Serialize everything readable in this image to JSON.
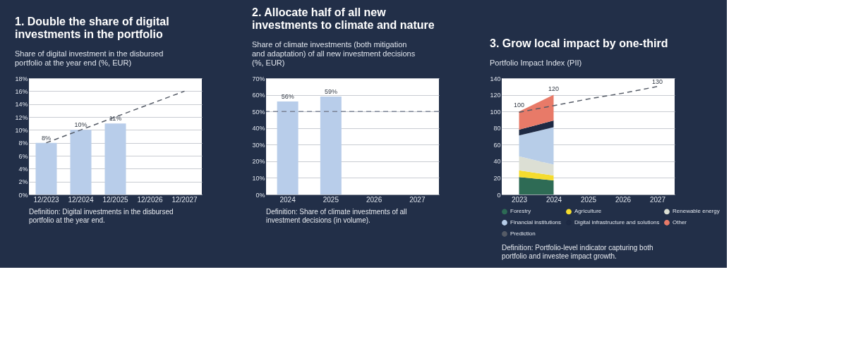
{
  "chart_data": [
    {
      "type": "bar",
      "title": "1. Double the share of digital investments in the portfolio",
      "subtitle": "Share of digital investment in the disbursed portfolio at the year end (%, EUR)",
      "categories": [
        "12/2023",
        "12/2024",
        "12/2025",
        "12/2026",
        "12/2027"
      ],
      "series": [
        {
          "type": "bar",
          "color": "#b8cdea",
          "values": [
            8,
            10,
            11,
            null,
            null
          ],
          "value_labels": [
            "8%",
            "10%",
            "11%",
            null,
            null
          ]
        },
        {
          "type": "line",
          "color": "#555b66",
          "line_style": "dashed",
          "values": [
            8,
            10,
            12,
            14,
            16
          ]
        }
      ],
      "ylim": [
        0,
        18
      ],
      "yticks": [
        {
          "value": 0,
          "label": "0%"
        },
        {
          "value": 2,
          "label": "2%"
        },
        {
          "value": 4,
          "label": "4%"
        },
        {
          "value": 6,
          "label": "6%"
        },
        {
          "value": 8,
          "label": "8%"
        },
        {
          "value": 10,
          "label": "10%"
        },
        {
          "value": 12,
          "label": "12%"
        },
        {
          "value": 14,
          "label": "14%"
        },
        {
          "value": 16,
          "label": "16%"
        },
        {
          "value": 18,
          "label": "18%"
        }
      ],
      "grid": "y",
      "annotations": [
        "Definition: Digital investments in the disbursed portfolio at the year end."
      ]
    },
    {
      "type": "bar",
      "title": "2. Allocate half of all new investments to climate and nature",
      "subtitle": "Share of climate investments (both mitigation and adaptation) of all new investment decisions (%, EUR)",
      "categories": [
        "2024",
        "2025",
        "2026",
        "2027"
      ],
      "series": [
        {
          "type": "bar",
          "color": "#b8cdea",
          "values": [
            56,
            59,
            null,
            null
          ],
          "value_labels": [
            "56%",
            "59%",
            null,
            null
          ]
        }
      ],
      "ref_lines": [
        {
          "axis": "y",
          "value": 50,
          "color": "#7a8294",
          "line_style": "dashed"
        }
      ],
      "ylim": [
        0,
        70
      ],
      "yticks": [
        {
          "value": 0,
          "label": "0%"
        },
        {
          "value": 10,
          "label": "10%"
        },
        {
          "value": 20,
          "label": "20%"
        },
        {
          "value": 30,
          "label": "30%"
        },
        {
          "value": 40,
          "label": "40%"
        },
        {
          "value": 50,
          "label": "50%"
        },
        {
          "value": 60,
          "label": "60%"
        },
        {
          "value": 70,
          "label": "70%"
        }
      ],
      "grid": "y",
      "annotations": [
        "Definition: Share of climate investments of all investment decisions (in volume)."
      ]
    },
    {
      "type": "area",
      "stacked": true,
      "title": "3. Grow local impact by one-third",
      "subtitle": "Portfolio Impact Index (PII)",
      "categories": [
        "2023",
        "2024",
        "2025",
        "2026",
        "2027"
      ],
      "series": [
        {
          "name": "Forestry",
          "color": "#2e6b55",
          "values": [
            21,
            17,
            null,
            null,
            null
          ]
        },
        {
          "name": "Agriculture",
          "color": "#f5dc2e",
          "values": [
            8,
            6,
            null,
            null,
            null
          ]
        },
        {
          "name": "Renewable energy",
          "color": "#dcdfd4",
          "values": [
            17,
            13,
            null,
            null,
            null
          ]
        },
        {
          "name": "Financial institutions",
          "color": "#b7cde8",
          "values": [
            25,
            45,
            null,
            null,
            null
          ]
        },
        {
          "name": "Digital infrastructure and solutions",
          "color": "#1e2a44",
          "values": [
            7,
            8,
            null,
            null,
            null
          ]
        },
        {
          "name": "Other",
          "color": "#e87a68",
          "values": [
            22,
            31,
            null,
            null,
            null
          ]
        },
        {
          "name": "Prediction",
          "type": "line",
          "color": "#555b66",
          "line_style": "dashed",
          "values": [
            99,
            107,
            115,
            122,
            130
          ],
          "value_labels": [
            null,
            null,
            null,
            null,
            "130"
          ]
        }
      ],
      "totals": [
        "100",
        "120",
        null,
        null,
        null
      ],
      "ylim": [
        0,
        140
      ],
      "yticks": [
        0,
        20,
        40,
        60,
        80,
        100,
        120,
        140
      ],
      "grid": "y",
      "legend": "bottom",
      "annotations": [
        "Definition: Portfolio-level indicator capturing both portfolio and investee impact growth."
      ]
    }
  ]
}
